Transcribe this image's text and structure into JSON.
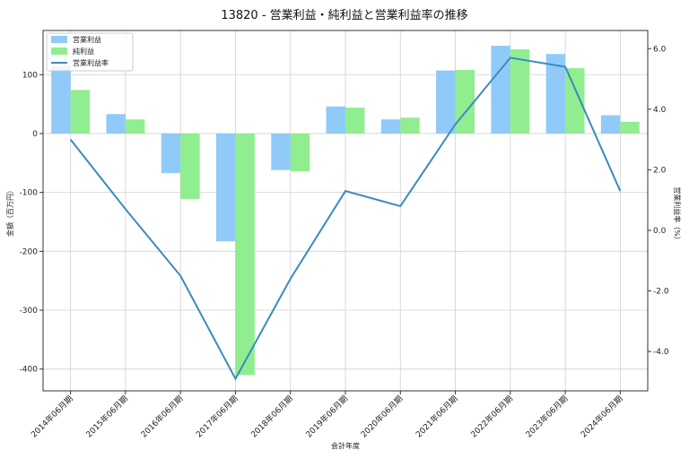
{
  "chart_data": {
    "type": "bar",
    "title": "13820 - 営業利益・純利益と営業利益率の推移",
    "xlabel": "会計年度",
    "ylabel": "金額（百万円）",
    "y2label": "営業利益率（%）",
    "categories": [
      "2014年06月期",
      "2015年06月期",
      "2016年06月期",
      "2017年06月期",
      "2018年06月期",
      "2019年06月期",
      "2020年06月期",
      "2021年06月期",
      "2022年06月期",
      "2023年06月期",
      "2024年06月期"
    ],
    "series": [
      {
        "name": "営業利益",
        "type": "bar",
        "axis": "left",
        "color": "#90CAF9",
        "values": [
          115,
          33,
          -67,
          -183,
          -62,
          46,
          24,
          107,
          149,
          135,
          31
        ]
      },
      {
        "name": "純利益",
        "type": "bar",
        "axis": "left",
        "color": "#90EE90",
        "values": [
          74,
          24,
          -111,
          -410,
          -64,
          44,
          27,
          108,
          143,
          111,
          20
        ]
      },
      {
        "name": "営業利益率",
        "type": "line",
        "axis": "right",
        "color": "#3A8BC0",
        "values": [
          3.0,
          0.7,
          -1.5,
          -4.9,
          -1.6,
          1.3,
          0.8,
          3.5,
          5.7,
          5.4,
          1.3
        ]
      }
    ],
    "ylim": [
      -437,
      175
    ],
    "y2lim": [
      -5.3,
      6.6
    ],
    "yticks": [
      100,
      0,
      -100,
      -200,
      -300,
      -400
    ],
    "y2ticks": [
      6.0,
      4.0,
      2.0,
      0.0,
      -2.0,
      -4.0
    ],
    "legend": "top-left",
    "grid": true
  }
}
